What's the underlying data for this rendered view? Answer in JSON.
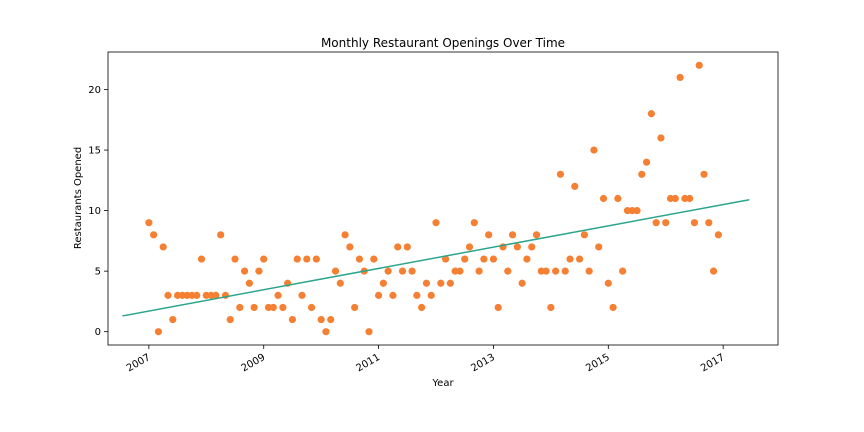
{
  "chart_data": {
    "type": "scatter",
    "title": "Monthly Restaurant Openings Over Time",
    "xlabel": "Year",
    "ylabel": "Restaurants Opened",
    "x_ticks": [
      2007,
      2009,
      2011,
      2013,
      2015,
      2017
    ],
    "x_tick_labels": [
      "2007",
      "2009",
      "2011",
      "2013",
      "2015",
      "2017"
    ],
    "y_ticks": [
      0,
      5,
      10,
      15,
      20
    ],
    "y_tick_labels": [
      "0",
      "5",
      "10",
      "15",
      "20"
    ],
    "xlim": [
      "2006-04-15",
      "2017-12-15"
    ],
    "ylim": [
      -1.1,
      23.1
    ],
    "grid": false,
    "legend": "none",
    "colors": {
      "points": "#f58033",
      "trend": "#2ca58d",
      "axis": "#000000"
    },
    "series": [
      {
        "type": "scatter",
        "points": [
          {
            "x": "2007-01",
            "y": 9
          },
          {
            "x": "2007-02",
            "y": 8
          },
          {
            "x": "2007-03",
            "y": 0
          },
          {
            "x": "2007-04",
            "y": 7
          },
          {
            "x": "2007-05",
            "y": 3
          },
          {
            "x": "2007-06",
            "y": 1
          },
          {
            "x": "2007-07",
            "y": 3
          },
          {
            "x": "2007-08",
            "y": 3
          },
          {
            "x": "2007-09",
            "y": 3
          },
          {
            "x": "2007-10",
            "y": 3
          },
          {
            "x": "2007-11",
            "y": 3
          },
          {
            "x": "2007-12",
            "y": 6
          },
          {
            "x": "2008-01",
            "y": 3
          },
          {
            "x": "2008-02",
            "y": 3
          },
          {
            "x": "2008-03",
            "y": 3
          },
          {
            "x": "2008-04",
            "y": 8
          },
          {
            "x": "2008-05",
            "y": 3
          },
          {
            "x": "2008-06",
            "y": 1
          },
          {
            "x": "2008-07",
            "y": 6
          },
          {
            "x": "2008-08",
            "y": 2
          },
          {
            "x": "2008-09",
            "y": 5
          },
          {
            "x": "2008-10",
            "y": 4
          },
          {
            "x": "2008-11",
            "y": 2
          },
          {
            "x": "2008-12",
            "y": 5
          },
          {
            "x": "2009-01",
            "y": 6
          },
          {
            "x": "2009-02",
            "y": 2
          },
          {
            "x": "2009-03",
            "y": 2
          },
          {
            "x": "2009-04",
            "y": 3
          },
          {
            "x": "2009-05",
            "y": 2
          },
          {
            "x": "2009-06",
            "y": 4
          },
          {
            "x": "2009-07",
            "y": 1
          },
          {
            "x": "2009-08",
            "y": 6
          },
          {
            "x": "2009-09",
            "y": 3
          },
          {
            "x": "2009-10",
            "y": 6
          },
          {
            "x": "2009-11",
            "y": 2
          },
          {
            "x": "2009-12",
            "y": 6
          },
          {
            "x": "2010-01",
            "y": 1
          },
          {
            "x": "2010-02",
            "y": 0
          },
          {
            "x": "2010-03",
            "y": 1
          },
          {
            "x": "2010-04",
            "y": 5
          },
          {
            "x": "2010-05",
            "y": 4
          },
          {
            "x": "2010-06",
            "y": 8
          },
          {
            "x": "2010-07",
            "y": 7
          },
          {
            "x": "2010-08",
            "y": 2
          },
          {
            "x": "2010-09",
            "y": 6
          },
          {
            "x": "2010-10",
            "y": 5
          },
          {
            "x": "2010-11",
            "y": 0
          },
          {
            "x": "2010-12",
            "y": 6
          },
          {
            "x": "2011-01",
            "y": 3
          },
          {
            "x": "2011-02",
            "y": 4
          },
          {
            "x": "2011-03",
            "y": 5
          },
          {
            "x": "2011-04",
            "y": 3
          },
          {
            "x": "2011-05",
            "y": 7
          },
          {
            "x": "2011-06",
            "y": 5
          },
          {
            "x": "2011-07",
            "y": 7
          },
          {
            "x": "2011-08",
            "y": 5
          },
          {
            "x": "2011-09",
            "y": 3
          },
          {
            "x": "2011-10",
            "y": 2
          },
          {
            "x": "2011-11",
            "y": 4
          },
          {
            "x": "2011-12",
            "y": 3
          },
          {
            "x": "2012-01",
            "y": 9
          },
          {
            "x": "2012-02",
            "y": 4
          },
          {
            "x": "2012-03",
            "y": 6
          },
          {
            "x": "2012-04",
            "y": 4
          },
          {
            "x": "2012-05",
            "y": 5
          },
          {
            "x": "2012-06",
            "y": 5
          },
          {
            "x": "2012-07",
            "y": 6
          },
          {
            "x": "2012-08",
            "y": 7
          },
          {
            "x": "2012-09",
            "y": 9
          },
          {
            "x": "2012-10",
            "y": 5
          },
          {
            "x": "2012-11",
            "y": 6
          },
          {
            "x": "2012-12",
            "y": 8
          },
          {
            "x": "2013-01",
            "y": 6
          },
          {
            "x": "2013-02",
            "y": 2
          },
          {
            "x": "2013-03",
            "y": 7
          },
          {
            "x": "2013-04",
            "y": 5
          },
          {
            "x": "2013-05",
            "y": 8
          },
          {
            "x": "2013-06",
            "y": 7
          },
          {
            "x": "2013-07",
            "y": 4
          },
          {
            "x": "2013-08",
            "y": 6
          },
          {
            "x": "2013-09",
            "y": 7
          },
          {
            "x": "2013-10",
            "y": 8
          },
          {
            "x": "2013-11",
            "y": 5
          },
          {
            "x": "2013-12",
            "y": 5
          },
          {
            "x": "2014-01",
            "y": 2
          },
          {
            "x": "2014-02",
            "y": 5
          },
          {
            "x": "2014-03",
            "y": 13
          },
          {
            "x": "2014-04",
            "y": 5
          },
          {
            "x": "2014-05",
            "y": 6
          },
          {
            "x": "2014-06",
            "y": 12
          },
          {
            "x": "2014-07",
            "y": 6
          },
          {
            "x": "2014-08",
            "y": 8
          },
          {
            "x": "2014-09",
            "y": 5
          },
          {
            "x": "2014-10",
            "y": 15
          },
          {
            "x": "2014-11",
            "y": 7
          },
          {
            "x": "2014-12",
            "y": 11
          },
          {
            "x": "2015-01",
            "y": 4
          },
          {
            "x": "2015-02",
            "y": 2
          },
          {
            "x": "2015-03",
            "y": 11
          },
          {
            "x": "2015-04",
            "y": 5
          },
          {
            "x": "2015-05",
            "y": 10
          },
          {
            "x": "2015-06",
            "y": 10
          },
          {
            "x": "2015-07",
            "y": 10
          },
          {
            "x": "2015-08",
            "y": 13
          },
          {
            "x": "2015-09",
            "y": 14
          },
          {
            "x": "2015-10",
            "y": 18
          },
          {
            "x": "2015-11",
            "y": 9
          },
          {
            "x": "2015-12",
            "y": 16
          },
          {
            "x": "2016-01",
            "y": 9
          },
          {
            "x": "2016-02",
            "y": 11
          },
          {
            "x": "2016-03",
            "y": 11
          },
          {
            "x": "2016-04",
            "y": 21
          },
          {
            "x": "2016-05",
            "y": 11
          },
          {
            "x": "2016-06",
            "y": 11
          },
          {
            "x": "2016-07",
            "y": 9
          },
          {
            "x": "2016-08",
            "y": 22
          },
          {
            "x": "2016-09",
            "y": 13
          },
          {
            "x": "2016-10",
            "y": 9
          },
          {
            "x": "2016-11",
            "y": 5
          },
          {
            "x": "2016-12",
            "y": 8
          }
        ]
      },
      {
        "type": "line",
        "points": [
          {
            "x": "2006-07-15",
            "y": 1.3
          },
          {
            "x": "2017-06-15",
            "y": 10.9
          }
        ]
      }
    ]
  }
}
